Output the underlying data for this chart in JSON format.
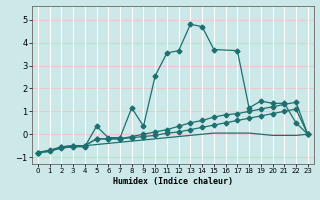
{
  "xlabel": "Humidex (Indice chaleur)",
  "xlim": [
    -0.5,
    23.5
  ],
  "ylim": [
    -1.3,
    5.6
  ],
  "xticks": [
    0,
    1,
    2,
    3,
    4,
    5,
    6,
    7,
    8,
    9,
    10,
    11,
    12,
    13,
    14,
    15,
    16,
    17,
    18,
    19,
    20,
    21,
    22,
    23
  ],
  "yticks": [
    -1,
    0,
    1,
    2,
    3,
    4,
    5
  ],
  "bg_color": "#cce8e8",
  "grid_h_color": "#e8c8c8",
  "grid_v_color": "#ffffff",
  "line_color": "#1e7070",
  "curve1_x": [
    0,
    1,
    2,
    3,
    4,
    5,
    6,
    7,
    8,
    9,
    10,
    11,
    12,
    13,
    14,
    15,
    16,
    17,
    18,
    19,
    20,
    21,
    22,
    23
  ],
  "curve1_y": [
    -0.8,
    -0.75,
    -0.6,
    -0.55,
    -0.5,
    -0.45,
    -0.4,
    -0.35,
    -0.3,
    -0.25,
    -0.2,
    -0.15,
    -0.1,
    -0.05,
    0.0,
    0.05,
    0.05,
    0.05,
    0.05,
    0.0,
    -0.05,
    -0.05,
    -0.05,
    0.0
  ],
  "curve2_x": [
    0,
    1,
    2,
    3,
    4,
    5,
    6,
    7,
    8,
    9,
    10,
    11,
    12,
    13,
    14,
    15,
    16,
    17,
    18,
    19,
    20,
    21,
    22,
    23
  ],
  "curve2_y": [
    -0.8,
    -0.75,
    -0.55,
    -0.5,
    -0.5,
    -0.2,
    -0.2,
    -0.2,
    -0.15,
    -0.1,
    -0.05,
    0.05,
    0.1,
    0.2,
    0.3,
    0.4,
    0.5,
    0.6,
    0.7,
    0.8,
    0.9,
    1.0,
    1.1,
    0.0
  ],
  "curve3_x": [
    0,
    1,
    2,
    3,
    4,
    5,
    6,
    7,
    8,
    9,
    10,
    11,
    12,
    13,
    14,
    15,
    16,
    17,
    18,
    19,
    20,
    21,
    22,
    23
  ],
  "curve3_y": [
    -0.8,
    -0.7,
    -0.55,
    -0.5,
    -0.5,
    -0.2,
    -0.2,
    -0.2,
    -0.1,
    0.0,
    0.1,
    0.2,
    0.35,
    0.5,
    0.6,
    0.75,
    0.85,
    0.9,
    1.0,
    1.1,
    1.2,
    1.3,
    1.4,
    0.0
  ],
  "curve4_x": [
    0,
    2,
    3,
    4,
    5,
    6,
    7,
    8,
    9,
    10,
    11,
    12,
    13,
    14,
    15,
    17,
    18,
    19,
    20,
    21,
    22,
    23
  ],
  "curve4_y": [
    -0.8,
    -0.6,
    -0.55,
    -0.55,
    0.35,
    -0.15,
    -0.15,
    1.15,
    0.35,
    2.55,
    3.55,
    3.65,
    4.8,
    4.7,
    3.7,
    3.65,
    1.15,
    1.45,
    1.35,
    1.35,
    0.5,
    0.0
  ]
}
